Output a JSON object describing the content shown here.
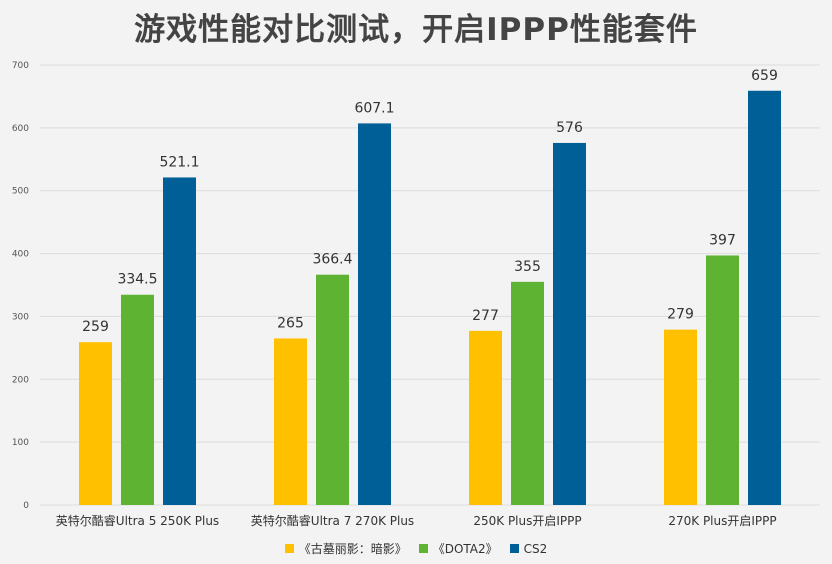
{
  "chart_data": {
    "type": "bar",
    "title": "游戏性能对比测试，开启IPPP性能套件",
    "xlabel": "",
    "ylabel": "",
    "ylim": [
      0,
      700
    ],
    "yticks": [
      0,
      100,
      200,
      300,
      400,
      500,
      600,
      700
    ],
    "grid": true,
    "legend_position": "bottom",
    "categories": [
      "英特尔酷睿Ultra 5 250K Plus",
      "英特尔酷睿Ultra 7 270K Plus",
      "250K Plus开启IPPP",
      "270K Plus开启IPPP"
    ],
    "series": [
      {
        "name": "《古墓丽影：暗影》",
        "color": "#ffc000",
        "values": [
          259,
          265,
          277,
          279
        ],
        "labels": [
          "259",
          "265",
          "277",
          "279"
        ]
      },
      {
        "name": "《DOTA2》",
        "color": "#5eb432",
        "values": [
          334.5,
          366.4,
          355,
          397
        ],
        "labels": [
          "334.5",
          "366.4",
          "355",
          "397"
        ]
      },
      {
        "name": "CS2",
        "color": "#005f97",
        "values": [
          521.1,
          607.1,
          576,
          659
        ],
        "labels": [
          "521.1",
          "607.1",
          "576",
          "659"
        ]
      }
    ]
  }
}
